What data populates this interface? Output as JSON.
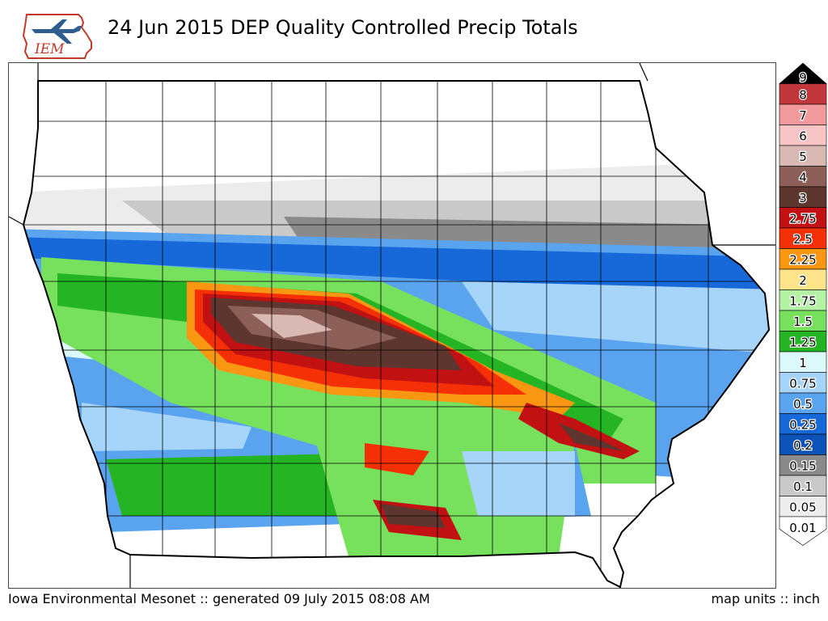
{
  "header": {
    "logo_text": "IEM",
    "title": "24 Jun 2015 DEP Quality Controlled Precip Totals"
  },
  "legend": {
    "levels": [
      {
        "label": "9",
        "color": "#000000"
      },
      {
        "label": "8",
        "color": "#c2373b"
      },
      {
        "label": "7",
        "color": "#f2999b"
      },
      {
        "label": "6",
        "color": "#f8c5c6"
      },
      {
        "label": "5",
        "color": "#d9b9b3"
      },
      {
        "label": "4",
        "color": "#8c6059"
      },
      {
        "label": "3",
        "color": "#5c362f"
      },
      {
        "label": "2.75",
        "color": "#c21112"
      },
      {
        "label": "2.5",
        "color": "#f53006"
      },
      {
        "label": "2.25",
        "color": "#fa9712"
      },
      {
        "label": "2",
        "color": "#fde48a"
      },
      {
        "label": "1.75",
        "color": "#b4f3a4"
      },
      {
        "label": "1.5",
        "color": "#77e15e"
      },
      {
        "label": "1.25",
        "color": "#24b424"
      },
      {
        "label": "1",
        "color": "#dbf8fb"
      },
      {
        "label": "0.75",
        "color": "#a6d5f9"
      },
      {
        "label": "0.5",
        "color": "#5aa4ef"
      },
      {
        "label": "0.25",
        "color": "#1769d9"
      },
      {
        "label": "0.2",
        "color": "#0d52b6"
      },
      {
        "label": "0.15",
        "color": "#8a8a8a"
      },
      {
        "label": "0.1",
        "color": "#c9c9c9"
      },
      {
        "label": "0.05",
        "color": "#ececec"
      },
      {
        "label": "0.01",
        "color": "#ffffff"
      }
    ]
  },
  "footer": {
    "left": "Iowa Environmental Mesonet :: generated 09 July 2015 08:08 AM",
    "right": "map units :: inch"
  }
}
